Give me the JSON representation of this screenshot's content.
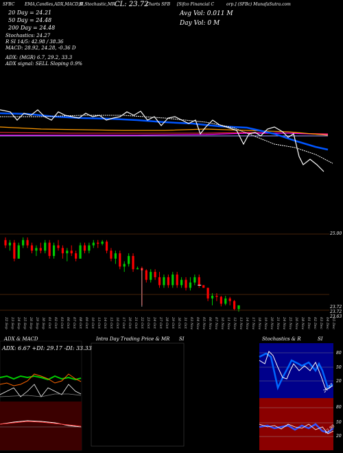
{
  "header": {
    "line1_a": "SFBC",
    "line1_b": "EMA,Candles,ADX,MACD,B",
    "line1_c": "SI,Stochastic,MR",
    "line1_d": "CL: 23.72",
    "line1_e": "Charts SFB",
    "line1_f": "[Sifco Financial C",
    "line1_g": "orp.] (SFBc) MunafaSutra.com",
    "ema20": "20 Day = 24.21",
    "ema50": "50 Day = 24.48",
    "ema200": "200 Day = 24.48",
    "stoch": "Stochastics: 24.27",
    "rsi": "R          SI 14/5: 42.98 / 38.36",
    "macd": "MACD: 28.92, 24.28, -0.36  D",
    "avg_vol": "Avg Vol: 0.011 M",
    "day_vol": "Day Vol: 0   M",
    "adx": "ADX:                        (MGR) 6.7, 29.2, 33.3",
    "adx_signal": "ADX  signal: SELL  Sloping  0.9%"
  },
  "price_labels": {
    "top": "25.00",
    "close": "23.72",
    "close2": "23.72",
    "close3": "23.63"
  },
  "dates": [
    "22 Sep",
    "23 Sep",
    "24 Sep",
    "25 Sep",
    "26 Sep",
    "29 Sep",
    "30 Sep",
    "01 Oct",
    "02 Oct",
    "03 Oct",
    "06 Oct",
    "07 Oct",
    "08 Oct",
    "09 Oct",
    "10 Oct",
    "13 Oct",
    "14 Oct",
    "15 Oct",
    "16 Oct",
    "17 Oct",
    "20 Oct",
    "21 Oct",
    "22 Oct",
    "23 Oct",
    "24 Oct",
    "27 Oct",
    "28 Oct",
    "29 Oct",
    "30 Oct",
    "31 Oct",
    "03 Nov",
    "04 Nov",
    "05 Nov",
    "06 Nov",
    "07 Nov",
    "10 Nov",
    "11 Nov",
    "12 Nov",
    "13 Nov",
    "14 Nov",
    "17 Nov",
    "18 Nov",
    "19 Nov",
    "20 Nov",
    "21 Nov",
    "24 Nov",
    "25 Nov",
    "26 Nov",
    "28 Nov",
    "01 Dec",
    "02 Dec",
    "03 Dec",
    "04 Dec",
    "05 Dec"
  ],
  "panels": {
    "adx_title": "ADX  & MACD",
    "adx_values": "ADX: 6.67  +DI: 29.17  -DI: 33.33",
    "intraday_title": "Intra  Day Trading Price  & MR",
    "intraday_si": "SI",
    "stoch_title": "Stochastics & R",
    "stoch_si": "SI",
    "stoch_levels": [
      "80",
      "50",
      "20"
    ],
    "rsi_levels": [
      "80",
      "50",
      "20"
    ],
    "stoch_value": "24.27",
    "rsi_value": "42.98"
  },
  "colors": {
    "ema20": "#ff9900",
    "ema50": "#0055ff",
    "ema200": "#ff00ff",
    "up": "#00cc00",
    "down": "#ff0000",
    "line": "#ffffff",
    "rsi_bg": "#8b0000",
    "stoch_bg": "#00008b"
  },
  "chart_data": {
    "type": "candlestick",
    "candles": [
      {
        "o": 24.95,
        "h": 25.0,
        "l": 24.8,
        "c": 24.85
      },
      {
        "o": 24.85,
        "h": 24.95,
        "l": 24.75,
        "c": 24.9
      },
      {
        "o": 24.9,
        "h": 24.95,
        "l": 24.55,
        "c": 24.6
      },
      {
        "o": 24.6,
        "h": 24.9,
        "l": 24.6,
        "c": 24.85
      },
      {
        "o": 24.85,
        "h": 25.0,
        "l": 24.8,
        "c": 24.95
      },
      {
        "o": 24.95,
        "h": 25.0,
        "l": 24.8,
        "c": 24.85
      },
      {
        "o": 24.85,
        "h": 24.9,
        "l": 24.7,
        "c": 24.75
      },
      {
        "o": 24.75,
        "h": 24.85,
        "l": 24.65,
        "c": 24.8
      },
      {
        "o": 24.8,
        "h": 24.9,
        "l": 24.7,
        "c": 24.75
      },
      {
        "o": 24.75,
        "h": 24.95,
        "l": 24.7,
        "c": 24.9
      },
      {
        "o": 24.9,
        "h": 24.95,
        "l": 24.6,
        "c": 24.65
      },
      {
        "o": 24.65,
        "h": 24.9,
        "l": 24.6,
        "c": 24.85
      },
      {
        "o": 24.85,
        "h": 24.95,
        "l": 24.75,
        "c": 24.8
      },
      {
        "o": 24.8,
        "h": 24.85,
        "l": 24.6,
        "c": 24.7
      },
      {
        "o": 24.7,
        "h": 24.8,
        "l": 24.55,
        "c": 24.75
      },
      {
        "o": 24.75,
        "h": 24.85,
        "l": 24.65,
        "c": 24.7
      },
      {
        "o": 24.7,
        "h": 24.75,
        "l": 24.55,
        "c": 24.6
      },
      {
        "o": 24.6,
        "h": 24.9,
        "l": 24.6,
        "c": 24.85
      },
      {
        "o": 24.85,
        "h": 24.9,
        "l": 24.7,
        "c": 24.75
      },
      {
        "o": 24.75,
        "h": 24.9,
        "l": 24.7,
        "c": 24.85
      },
      {
        "o": 24.85,
        "h": 24.95,
        "l": 24.8,
        "c": 24.9
      },
      {
        "o": 24.9,
        "h": 24.95,
        "l": 24.8,
        "c": 24.88
      },
      {
        "o": 24.88,
        "h": 24.95,
        "l": 24.85,
        "c": 24.92
      },
      {
        "o": 24.92,
        "h": 24.95,
        "l": 24.7,
        "c": 24.75
      },
      {
        "o": 24.75,
        "h": 24.8,
        "l": 24.55,
        "c": 24.6
      },
      {
        "o": 24.6,
        "h": 24.75,
        "l": 24.5,
        "c": 24.7
      },
      {
        "o": 24.7,
        "h": 24.75,
        "l": 24.4,
        "c": 24.45
      },
      {
        "o": 24.45,
        "h": 24.55,
        "l": 24.35,
        "c": 24.5
      },
      {
        "o": 24.5,
        "h": 24.7,
        "l": 24.45,
        "c": 24.65
      },
      {
        "o": 24.65,
        "h": 24.7,
        "l": 24.35,
        "c": 24.4
      },
      {
        "o": 24.4,
        "h": 24.45,
        "l": 24.4,
        "c": 24.42
      },
      {
        "o": 24.42,
        "h": 24.45,
        "l": 23.72,
        "c": 24.38
      },
      {
        "o": 24.38,
        "h": 24.4,
        "l": 24.15,
        "c": 24.2
      },
      {
        "o": 24.2,
        "h": 24.4,
        "l": 24.15,
        "c": 24.35
      },
      {
        "o": 24.35,
        "h": 24.4,
        "l": 24.2,
        "c": 24.25
      },
      {
        "o": 24.25,
        "h": 24.35,
        "l": 24.05,
        "c": 24.1
      },
      {
        "o": 24.1,
        "h": 24.3,
        "l": 24.05,
        "c": 24.25
      },
      {
        "o": 24.25,
        "h": 24.3,
        "l": 24.05,
        "c": 24.1
      },
      {
        "o": 24.1,
        "h": 24.35,
        "l": 24.05,
        "c": 24.3
      },
      {
        "o": 24.3,
        "h": 24.35,
        "l": 24.05,
        "c": 24.1
      },
      {
        "o": 24.1,
        "h": 24.25,
        "l": 24.05,
        "c": 24.2
      },
      {
        "o": 24.2,
        "h": 24.25,
        "l": 24.0,
        "c": 24.05
      },
      {
        "o": 24.05,
        "h": 24.25,
        "l": 24.0,
        "c": 24.15
      },
      {
        "o": 24.15,
        "h": 24.3,
        "l": 24.1,
        "c": 24.25
      },
      {
        "o": 24.25,
        "h": 24.3,
        "l": 24.05,
        "c": 24.1
      },
      {
        "o": 24.1,
        "h": 24.1,
        "l": 24.05,
        "c": 24.05
      },
      {
        "o": 24.05,
        "h": 24.05,
        "l": 23.8,
        "c": 23.85
      },
      {
        "o": 23.85,
        "h": 23.95,
        "l": 23.72,
        "c": 23.9
      },
      {
        "o": 23.9,
        "h": 23.95,
        "l": 23.8,
        "c": 23.88
      },
      {
        "o": 23.88,
        "h": 23.9,
        "l": 23.7,
        "c": 23.75
      },
      {
        "o": 23.75,
        "h": 23.9,
        "l": 23.72,
        "c": 23.85
      },
      {
        "o": 23.85,
        "h": 23.88,
        "l": 23.72,
        "c": 23.8
      },
      {
        "o": 23.8,
        "h": 23.82,
        "l": 23.63,
        "c": 23.65
      },
      {
        "o": 23.65,
        "h": 23.72,
        "l": 23.6,
        "c": 23.72
      }
    ],
    "ylim": [
      23.55,
      25.05
    ]
  }
}
